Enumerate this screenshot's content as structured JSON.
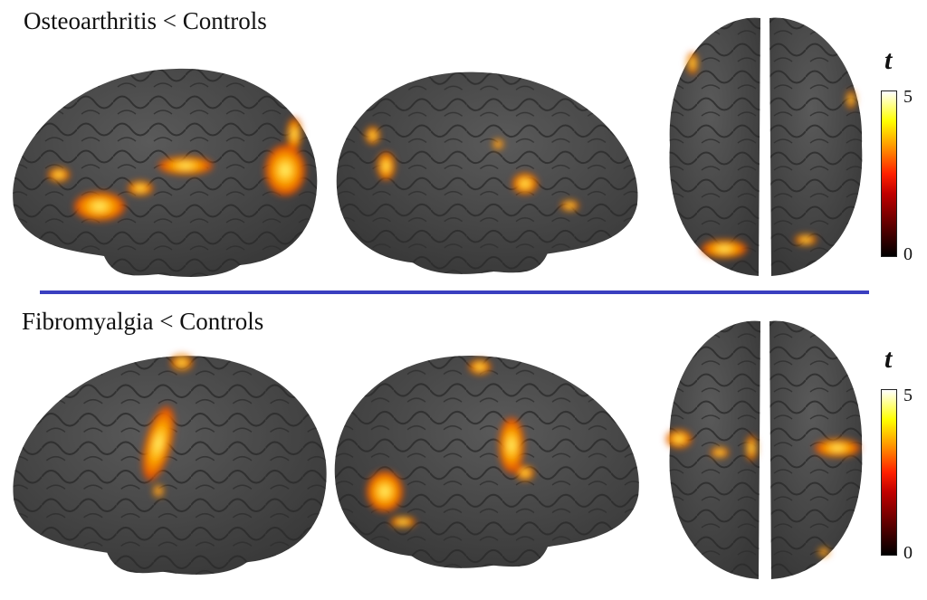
{
  "panels": [
    {
      "title": "Osteoarthritis < Controls",
      "colorbar": {
        "label": "t",
        "max": "5",
        "min": "0"
      }
    },
    {
      "title": "Fibromyalgia < Controls",
      "colorbar": {
        "label": "t",
        "max": "5",
        "min": "0"
      }
    }
  ],
  "colors": {
    "divider": "#3a3fc0",
    "cortex": "#4a4a4a",
    "activation_low": "#c00000",
    "activation_mid": "#ff9000",
    "activation_high": "#ffff60"
  },
  "colormap": "hot (black-red-yellow-white)"
}
